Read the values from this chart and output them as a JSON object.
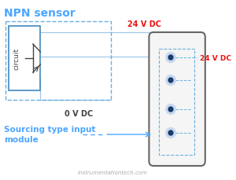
{
  "title": "NPN sensor",
  "title_color": "#4da6ff",
  "title_fontsize": 10,
  "bg_color": "#ffffff",
  "label_24vdc_top": "24 V DC",
  "label_24vdc_right": "24 V DC",
  "label_0vdc": "0 V DC",
  "label_sourcing1": "Sourcing type input",
  "label_sourcing2": "module",
  "label_circuit": "circuit",
  "label_watermark": "instrumentationtech.com",
  "red_color": "#ee1111",
  "blue_color": "#4da6ff",
  "wire_color": "#a0c8e8",
  "dark_color": "#444444",
  "gray_color": "#aaaaaa",
  "module_fill": "#f5f5f5",
  "module_stroke": "#666666",
  "dot_fill": "#c8d8ee",
  "dot_center": "#1a3a6e",
  "dashed_box_color": "#6ab0e0",
  "circuit_box_color": "#4488bb"
}
